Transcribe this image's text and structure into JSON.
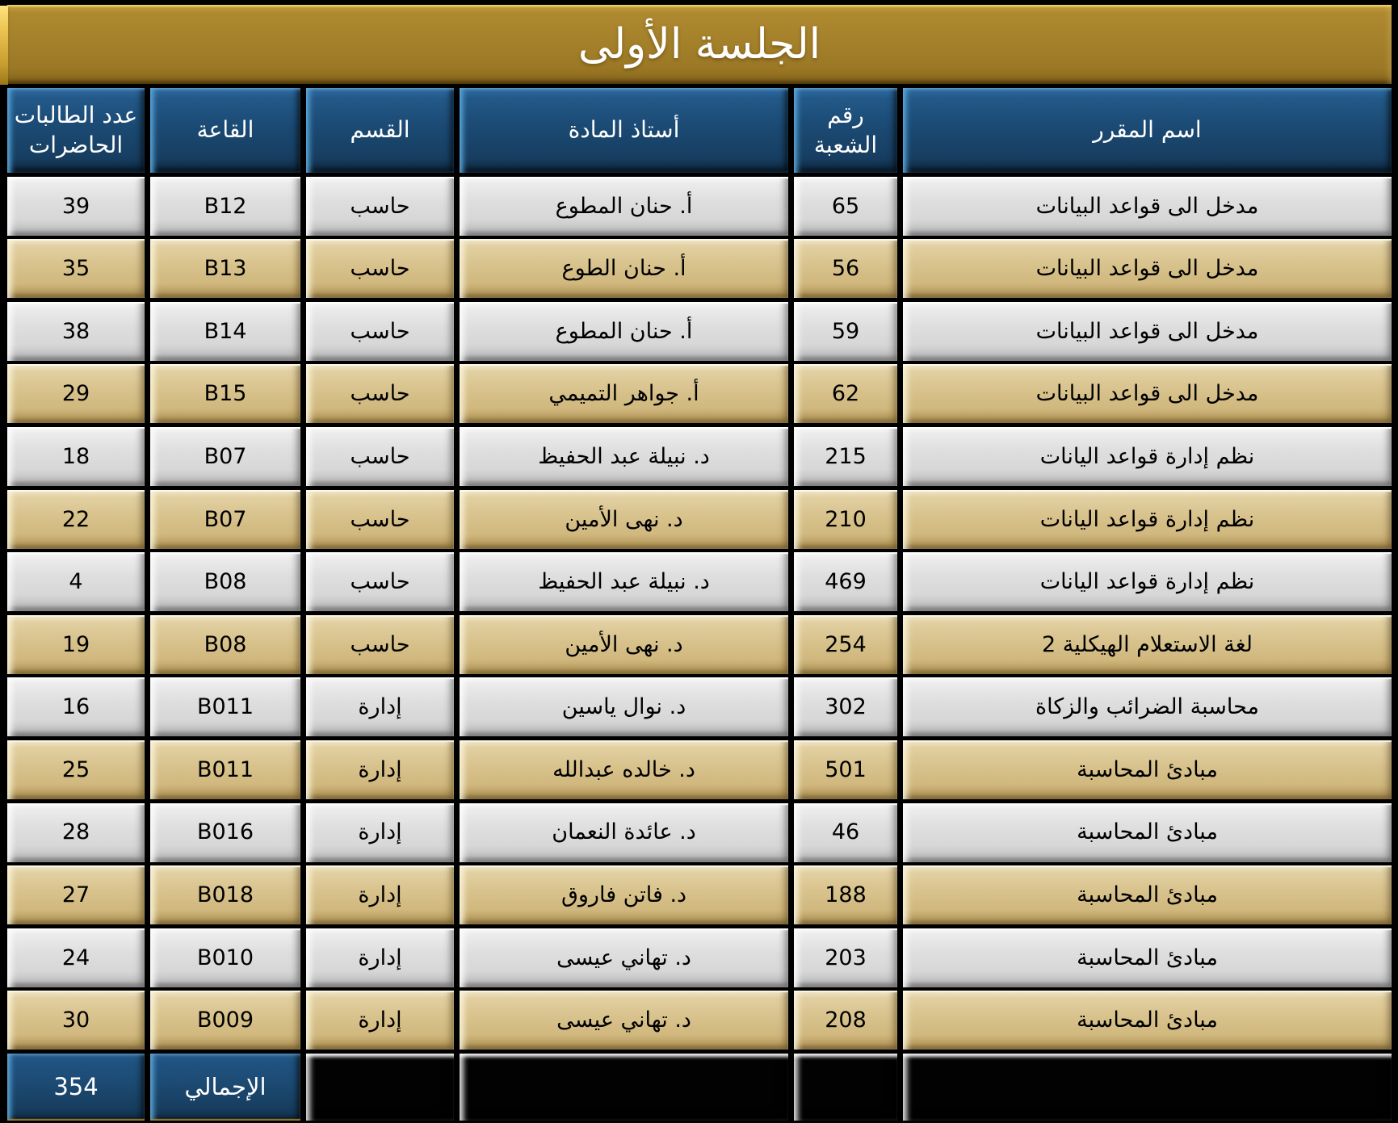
{
  "title": "الجلسة الأولى",
  "columns": [
    {
      "key": "course",
      "label": "اسم المقرر"
    },
    {
      "key": "section",
      "label": "رقم الشعبة"
    },
    {
      "key": "professor",
      "label": "أستاذ المادة"
    },
    {
      "key": "department",
      "label": "القسم"
    },
    {
      "key": "hall",
      "label": "القاعة"
    },
    {
      "key": "count",
      "label": "عدد الطالبات الحاضرات"
    }
  ],
  "rows": [
    {
      "course": "مدخل الى قواعد البيانات",
      "section": "65",
      "professor": "أ. حنان المطوع",
      "department": "حاسب",
      "hall": "B12",
      "count": "39"
    },
    {
      "course": "مدخل الى قواعد البيانات",
      "section": "56",
      "professor": "أ. حنان الطوع",
      "department": "حاسب",
      "hall": "B13",
      "count": "35"
    },
    {
      "course": "مدخل الى قواعد البيانات",
      "section": "59",
      "professor": "أ. حنان المطوع",
      "department": "حاسب",
      "hall": "B14",
      "count": "38"
    },
    {
      "course": "مدخل الى قواعد البيانات",
      "section": "62",
      "professor": "أ. جواهر التميمي",
      "department": "حاسب",
      "hall": "B15",
      "count": "29"
    },
    {
      "course": "نظم إدارة قواعد اليانات",
      "section": "215",
      "professor": "د. نبيلة عبد الحفيظ",
      "department": "حاسب",
      "hall": "B07",
      "count": "18"
    },
    {
      "course": "نظم إدارة قواعد اليانات",
      "section": "210",
      "professor": "د. نهى الأمين",
      "department": "حاسب",
      "hall": "B07",
      "count": "22"
    },
    {
      "course": "نظم إدارة قواعد اليانات",
      "section": "469",
      "professor": "د. نبيلة عبد الحفيظ",
      "department": "حاسب",
      "hall": "B08",
      "count": "4"
    },
    {
      "course": "لغة الاستعلام الهيكلية 2",
      "section": "254",
      "professor": "د. نهى الأمين",
      "department": "حاسب",
      "hall": "B08",
      "count": "19"
    },
    {
      "course": "محاسبة الضرائب والزكاة",
      "section": "302",
      "professor": "د. نوال ياسين",
      "department": "إدارة",
      "hall": "B011",
      "count": "16"
    },
    {
      "course": "مبادئ المحاسبة",
      "section": "501",
      "professor": "د. خالده عبدالله",
      "department": "إدارة",
      "hall": "B011",
      "count": "25"
    },
    {
      "course": "مبادئ المحاسبة",
      "section": "46",
      "professor": "د. عائدة النعمان",
      "department": "إدارة",
      "hall": "B016",
      "count": "28"
    },
    {
      "course": "مبادئ المحاسبة",
      "section": "188",
      "professor": "د. فاتن فاروق",
      "department": "إدارة",
      "hall": "B018",
      "count": "27"
    },
    {
      "course": "مبادئ المحاسبة",
      "section": "203",
      "professor": "د. تهاني عيسى",
      "department": "إدارة",
      "hall": "B010",
      "count": "24"
    },
    {
      "course": "مبادئ المحاسبة",
      "section": "208",
      "professor": "د. تهاني عيسى",
      "department": "إدارة",
      "hall": "B009",
      "count": "30"
    }
  ],
  "footer": {
    "label": "الإجمالي",
    "total": "354"
  },
  "colors": {
    "page_background": "#000000",
    "banner_gold": "#a5812b",
    "banner_edge_yellow": "#ffe47d",
    "header_navy": "#1b4a74",
    "header_bevel_blue": "#5cacdf",
    "row_silver": "#dedede",
    "row_gold": "#d8c28c",
    "footer_navy": "#1c4a72",
    "text_dark": "#000000",
    "text_light": "#ffffff"
  }
}
